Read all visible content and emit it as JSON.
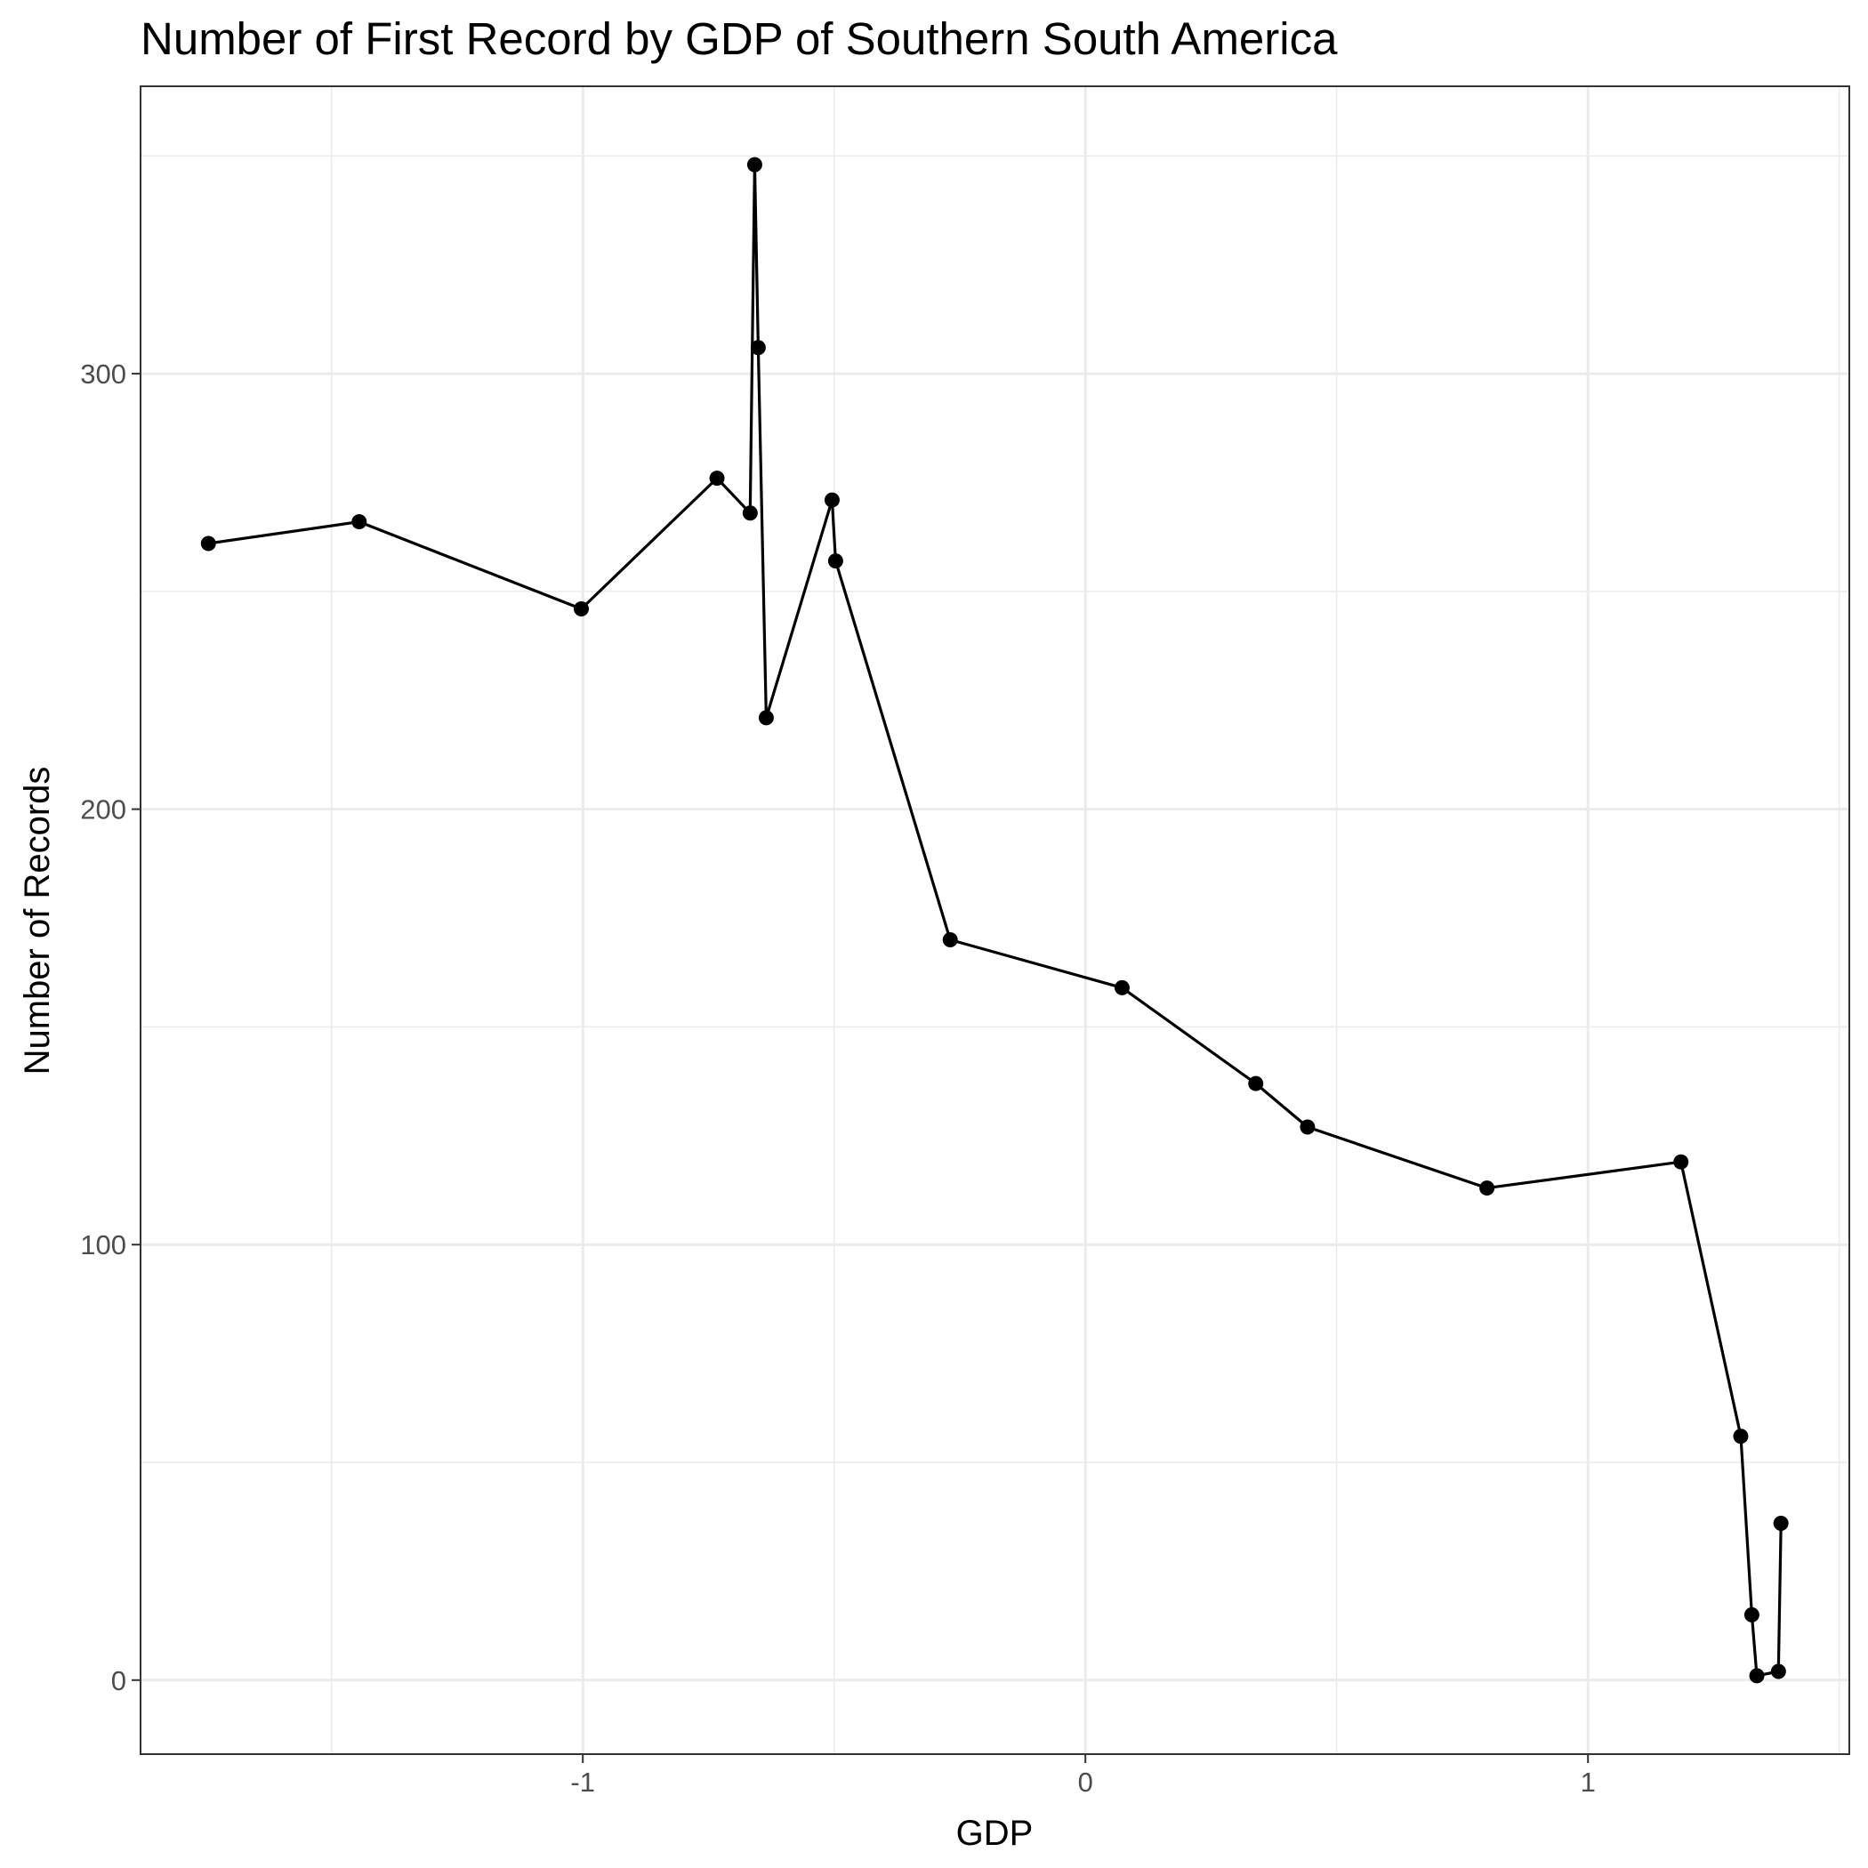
{
  "chart_data": {
    "type": "line",
    "title": "Number of First Record by GDP of Southern South America",
    "xlabel": "GDP",
    "ylabel": "Number of Records",
    "xlim": [
      -1.88,
      1.52
    ],
    "ylim": [
      -17,
      366
    ],
    "xticks": [
      -1,
      0,
      1
    ],
    "xtick_labels": [
      "-1",
      "0",
      "1"
    ],
    "yticks": [
      0,
      100,
      200,
      300
    ],
    "ytick_labels": [
      "0",
      "100",
      "200",
      "300"
    ],
    "x_minor_breaks": [
      -1.5,
      -0.5,
      0.5,
      1.5
    ],
    "y_minor_breaks": [
      50,
      150,
      250,
      350
    ],
    "grid": true,
    "legend": "none",
    "series": [
      {
        "color": "#000000",
        "marker": "circle",
        "points": [
          {
            "x": -1.745,
            "y": 261
          },
          {
            "x": -1.445,
            "y": 266
          },
          {
            "x": -1.003,
            "y": 246
          },
          {
            "x": -0.733,
            "y": 276
          },
          {
            "x": -0.667,
            "y": 268
          },
          {
            "x": -0.658,
            "y": 348
          },
          {
            "x": -0.651,
            "y": 306
          },
          {
            "x": -0.635,
            "y": 221
          },
          {
            "x": -0.504,
            "y": 271
          },
          {
            "x": -0.497,
            "y": 257
          },
          {
            "x": -0.269,
            "y": 170
          },
          {
            "x": 0.073,
            "y": 159
          },
          {
            "x": 0.339,
            "y": 137
          },
          {
            "x": 0.442,
            "y": 127
          },
          {
            "x": 0.799,
            "y": 113
          },
          {
            "x": 1.185,
            "y": 119
          },
          {
            "x": 1.304,
            "y": 56
          },
          {
            "x": 1.326,
            "y": 15
          },
          {
            "x": 1.336,
            "y": 1
          },
          {
            "x": 1.379,
            "y": 2
          },
          {
            "x": 1.384,
            "y": 36
          }
        ]
      }
    ]
  }
}
